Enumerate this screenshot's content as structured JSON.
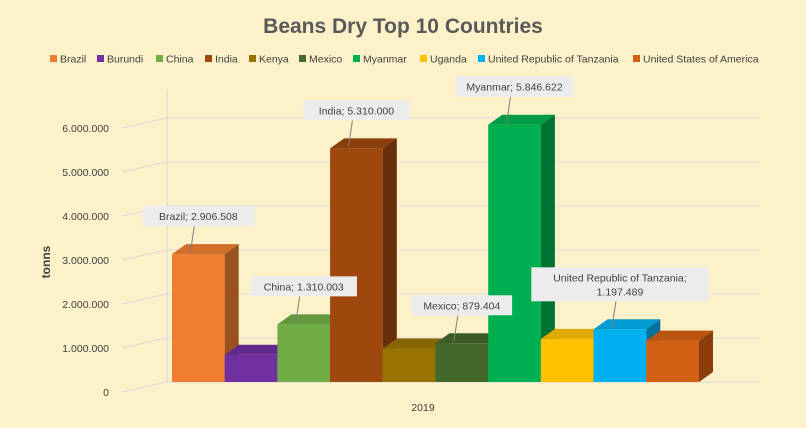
{
  "chart_data": {
    "type": "bar",
    "title": "Beans Dry  Top 10 Countries",
    "ylabel": "tonns",
    "xlabel": "",
    "categories": [
      "2019"
    ],
    "ylim": [
      0,
      6000000
    ],
    "yticks": [
      "0",
      "1.000.000",
      "2.000.000",
      "3.000.000",
      "4.000.000",
      "5.000.000",
      "6.000.000"
    ],
    "legend_position": "top",
    "grid": true,
    "series": [
      {
        "name": "Brazil",
        "values": [
          2906508
        ],
        "color": "#ed7d31",
        "label": "Brazil; 2.906.508"
      },
      {
        "name": "Burundi",
        "values": [
          620000
        ],
        "color": "#7030a0",
        "label": ""
      },
      {
        "name": "China",
        "values": [
          1310003
        ],
        "color": "#70ad47",
        "label": "China; 1.310.003"
      },
      {
        "name": "India",
        "values": [
          5310000
        ],
        "color": "#9e480e",
        "label": "India; 5.310.000"
      },
      {
        "name": "Kenya",
        "values": [
          760000
        ],
        "color": "#997300",
        "label": ""
      },
      {
        "name": "Mexico",
        "values": [
          879404
        ],
        "color": "#43682b",
        "label": "Mexico; 879.404"
      },
      {
        "name": "Myanmar",
        "values": [
          5846622
        ],
        "color": "#00b050",
        "label": "Myanmar; 5.846.622"
      },
      {
        "name": "Uganda",
        "values": [
          980000
        ],
        "color": "#ffc000",
        "label": ""
      },
      {
        "name": "United Republic of Tanzania",
        "values": [
          1197489
        ],
        "color": "#00b0f0",
        "label": "United Republic of Tanzania;\n1.197.489"
      },
      {
        "name": "United States of America",
        "values": [
          940000
        ],
        "color": "#d35f12",
        "label": ""
      }
    ]
  }
}
